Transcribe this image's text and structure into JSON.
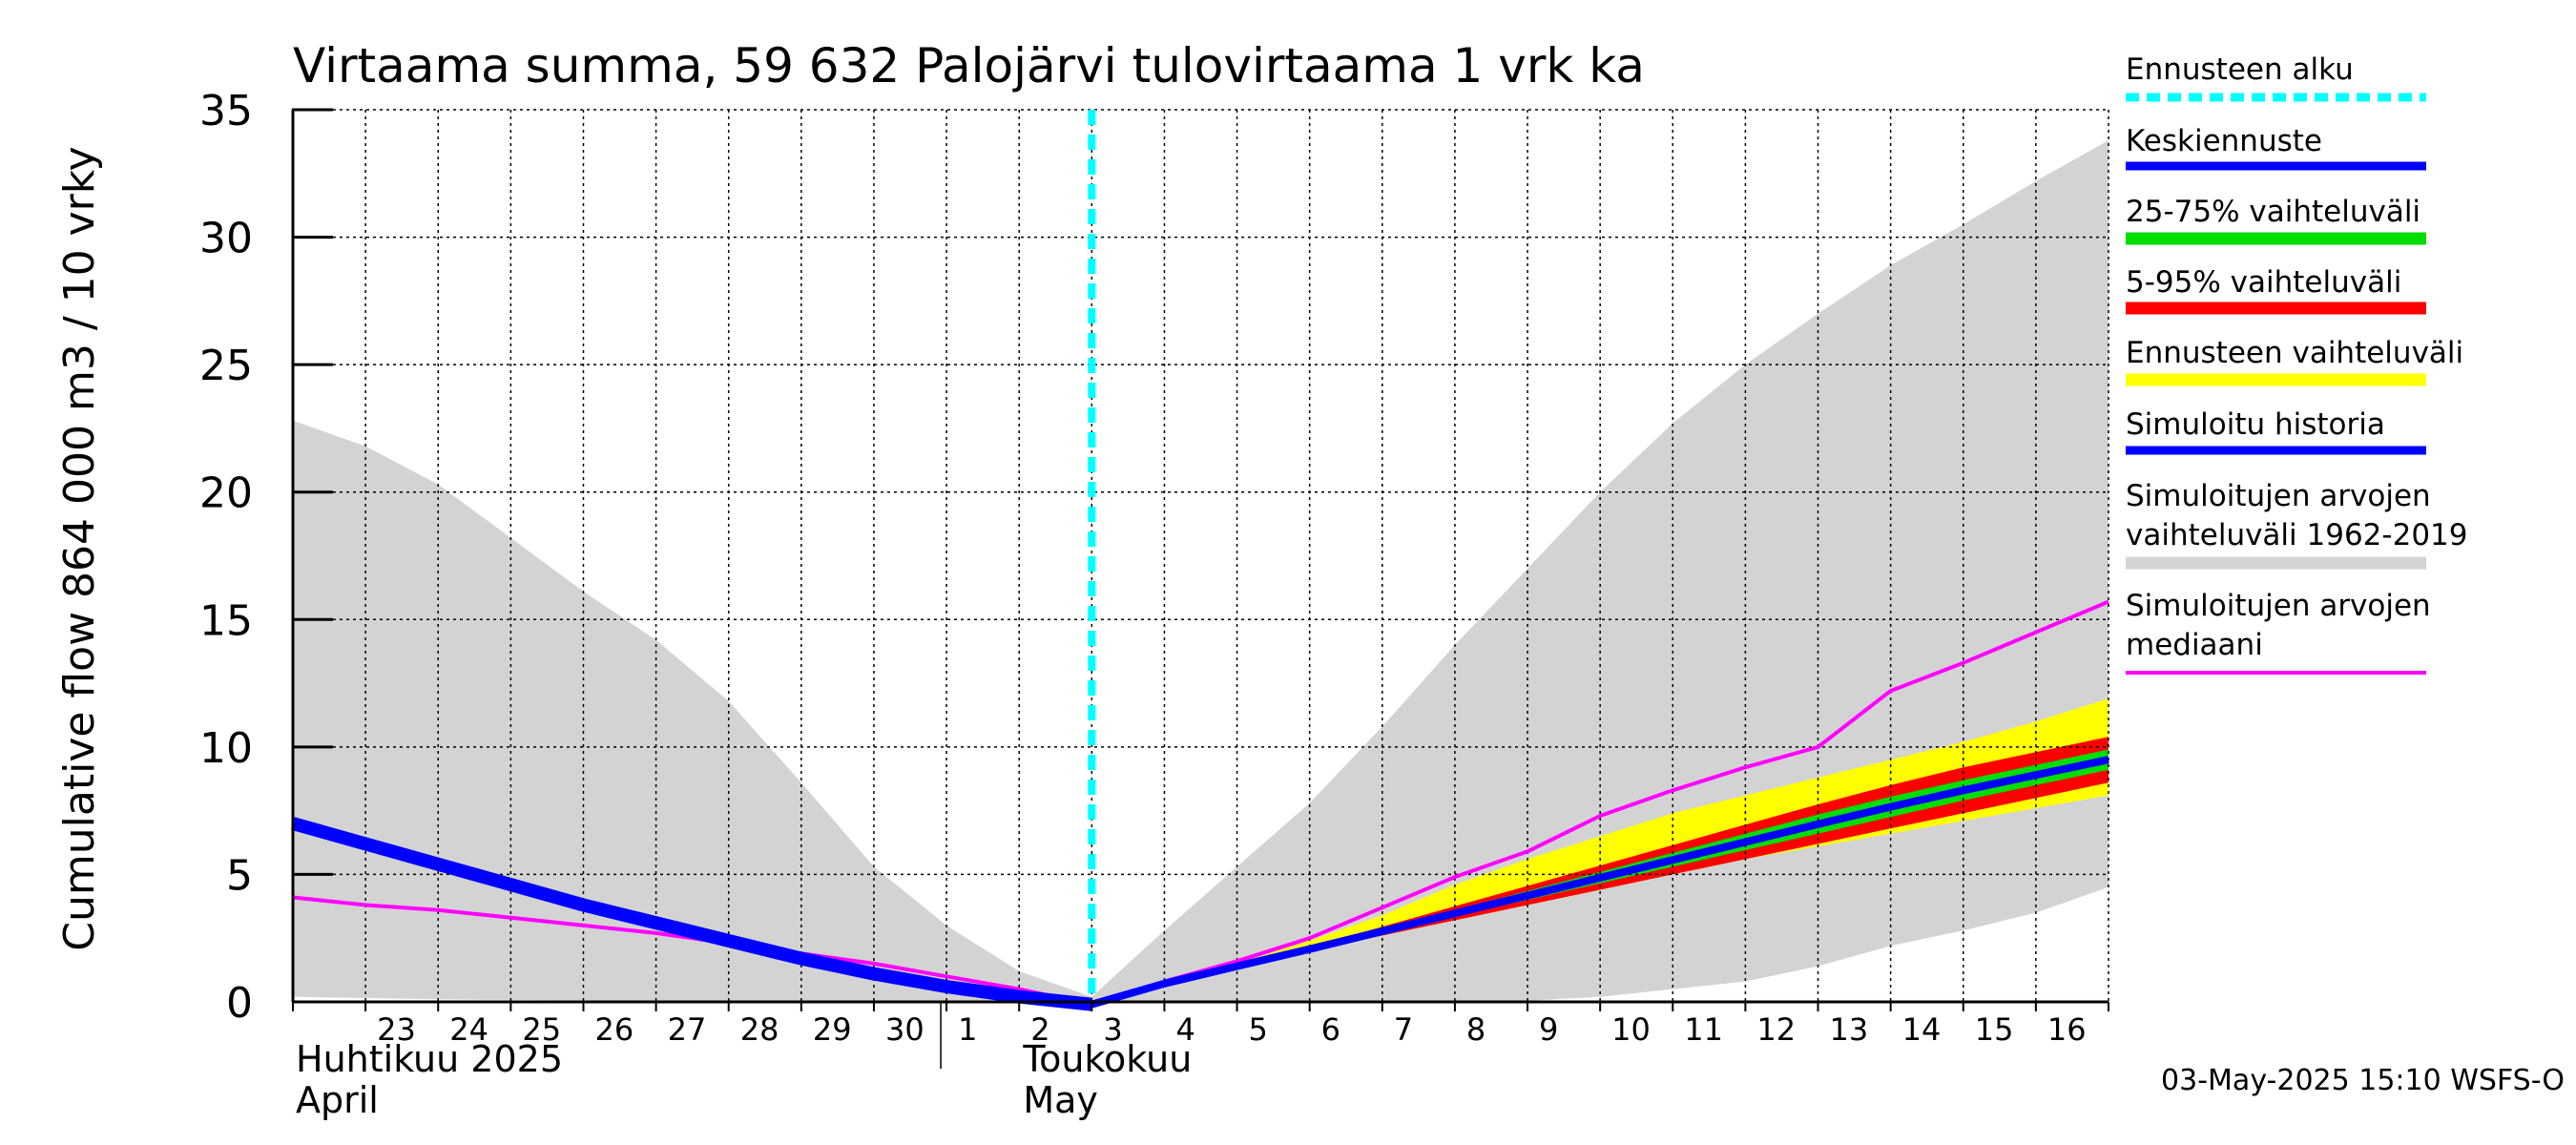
{
  "chart_data": {
    "type": "area",
    "title": "Virtaama summa, 59 632 Palojärvi tulovirtaama 1 vrk ka",
    "ylabel": "Cumulative flow    864 000 m3 / 10 vrky",
    "ylim": [
      0,
      35
    ],
    "yticks": [
      0,
      5,
      10,
      15,
      20,
      25,
      30,
      35
    ],
    "x_dates": [
      "2025-04-22",
      "2025-04-23",
      "2025-04-24",
      "2025-04-25",
      "2025-04-26",
      "2025-04-27",
      "2025-04-28",
      "2025-04-29",
      "2025-04-30",
      "2025-05-01",
      "2025-05-02",
      "2025-05-03",
      "2025-05-04",
      "2025-05-05",
      "2025-05-06",
      "2025-05-07",
      "2025-05-08",
      "2025-05-09",
      "2025-05-10",
      "2025-05-11",
      "2025-05-12",
      "2025-05-13",
      "2025-05-14",
      "2025-05-15",
      "2025-05-16",
      "2025-05-17"
    ],
    "xtick_labels": [
      "23",
      "24",
      "25",
      "26",
      "27",
      "28",
      "29",
      "30",
      "1",
      "2",
      "3",
      "4",
      "5",
      "6",
      "7",
      "8",
      "9",
      "10",
      "11",
      "12",
      "13",
      "14",
      "15",
      "16"
    ],
    "xtick_dates": [
      "2025-04-23",
      "2025-04-24",
      "2025-04-25",
      "2025-04-26",
      "2025-04-27",
      "2025-04-28",
      "2025-04-29",
      "2025-04-30",
      "2025-05-01",
      "2025-05-02",
      "2025-05-03",
      "2025-05-04",
      "2025-05-05",
      "2025-05-06",
      "2025-05-07",
      "2025-05-08",
      "2025-05-09",
      "2025-05-10",
      "2025-05-11",
      "2025-05-12",
      "2025-05-13",
      "2025-05-14",
      "2025-05-15",
      "2025-05-16"
    ],
    "month_labels": [
      {
        "line1": "Huhtikuu  2025",
        "line2": "April",
        "date": "2025-04-22"
      },
      {
        "line1": "Toukokuu",
        "line2": "May",
        "date": "2025-05-01"
      }
    ],
    "forecast_start": "2025-05-03",
    "series": [
      {
        "name": "Simuloitujen arvojen vaihteluväli 1962-2019",
        "kind": "band",
        "color": "#d3d3d3",
        "x": [
          "2025-04-22",
          "2025-04-23",
          "2025-04-24",
          "2025-04-25",
          "2025-04-26",
          "2025-04-27",
          "2025-04-28",
          "2025-04-29",
          "2025-04-30",
          "2025-05-01",
          "2025-05-02",
          "2025-05-03",
          "2025-05-04",
          "2025-05-05",
          "2025-05-06",
          "2025-05-07",
          "2025-05-08",
          "2025-05-09",
          "2025-05-10",
          "2025-05-11",
          "2025-05-12",
          "2025-05-13",
          "2025-05-14",
          "2025-05-15",
          "2025-05-16",
          "2025-05-17"
        ],
        "upper": [
          22.8,
          21.8,
          20.3,
          18.2,
          16.1,
          14.2,
          11.8,
          8.6,
          5.3,
          3.0,
          1.2,
          0.2,
          2.8,
          5.3,
          7.8,
          10.8,
          14.0,
          17.0,
          20.0,
          22.7,
          25.0,
          27.0,
          28.9,
          30.5,
          32.2,
          33.8
        ],
        "lower": [
          0.2,
          0.15,
          0.1,
          0.08,
          0.06,
          0.05,
          0.04,
          0.03,
          0.02,
          0.01,
          0.0,
          0.0,
          0.0,
          0.0,
          0.0,
          0.0,
          0.0,
          0.05,
          0.2,
          0.5,
          0.8,
          1.4,
          2.2,
          2.8,
          3.5,
          4.5
        ]
      },
      {
        "name": "Ennusteen vaihteluväli",
        "kind": "band",
        "color": "#ffff00",
        "x": [
          "2025-05-03",
          "2025-05-04",
          "2025-05-05",
          "2025-05-06",
          "2025-05-07",
          "2025-05-08",
          "2025-05-09",
          "2025-05-10",
          "2025-05-11",
          "2025-05-12",
          "2025-05-13",
          "2025-05-14",
          "2025-05-15",
          "2025-05-16",
          "2025-05-17"
        ],
        "upper": [
          0.0,
          0.8,
          1.5,
          2.4,
          3.4,
          4.6,
          5.6,
          6.5,
          7.4,
          8.1,
          8.8,
          9.5,
          10.2,
          11.0,
          11.9
        ],
        "lower": [
          0.0,
          0.7,
          1.3,
          2.0,
          2.6,
          3.2,
          3.8,
          4.4,
          5.0,
          5.6,
          6.1,
          6.6,
          7.1,
          7.6,
          8.1
        ]
      },
      {
        "name": "5-95% vaihteluväli",
        "kind": "band",
        "color": "#ff0000",
        "x": [
          "2025-05-03",
          "2025-05-04",
          "2025-05-05",
          "2025-05-06",
          "2025-05-07",
          "2025-05-08",
          "2025-05-09",
          "2025-05-10",
          "2025-05-11",
          "2025-05-12",
          "2025-05-13",
          "2025-05-14",
          "2025-05-15",
          "2025-05-16",
          "2025-05-17"
        ],
        "upper": [
          0.0,
          0.75,
          1.45,
          2.15,
          2.95,
          3.75,
          4.55,
          5.35,
          6.15,
          6.95,
          7.75,
          8.5,
          9.2,
          9.8,
          10.4
        ],
        "lower": [
          0.0,
          0.7,
          1.35,
          2.0,
          2.6,
          3.2,
          3.8,
          4.4,
          5.0,
          5.6,
          6.2,
          6.8,
          7.4,
          8.0,
          8.6
        ]
      },
      {
        "name": "25-75% vaihteluväli",
        "kind": "band",
        "color": "#00dd00",
        "x": [
          "2025-05-03",
          "2025-05-04",
          "2025-05-05",
          "2025-05-06",
          "2025-05-07",
          "2025-05-08",
          "2025-05-09",
          "2025-05-10",
          "2025-05-11",
          "2025-05-12",
          "2025-05-13",
          "2025-05-14",
          "2025-05-15",
          "2025-05-16",
          "2025-05-17"
        ],
        "upper": [
          0.0,
          0.73,
          1.42,
          2.1,
          2.85,
          3.6,
          4.35,
          5.1,
          5.85,
          6.6,
          7.35,
          8.05,
          8.7,
          9.3,
          9.9
        ],
        "lower": [
          0.0,
          0.71,
          1.38,
          2.05,
          2.7,
          3.35,
          4.0,
          4.65,
          5.3,
          5.95,
          6.6,
          7.25,
          7.9,
          8.5,
          9.1
        ]
      },
      {
        "name": "Simuloitujen arvojen mediaani",
        "kind": "line",
        "color": "#ff00ff",
        "width": 4,
        "x": [
          "2025-04-22",
          "2025-04-23",
          "2025-04-24",
          "2025-04-25",
          "2025-04-26",
          "2025-04-27",
          "2025-04-28",
          "2025-04-29",
          "2025-04-30",
          "2025-05-01",
          "2025-05-02",
          "2025-05-03",
          "2025-05-04",
          "2025-05-05",
          "2025-05-06",
          "2025-05-07",
          "2025-05-08",
          "2025-05-09",
          "2025-05-10",
          "2025-05-11",
          "2025-05-12",
          "2025-05-13",
          "2025-05-14",
          "2025-05-15",
          "2025-05-16",
          "2025-05-17"
        ],
        "y": [
          4.1,
          3.8,
          3.6,
          3.3,
          3.0,
          2.7,
          2.3,
          1.9,
          1.5,
          1.0,
          0.5,
          -0.1,
          0.8,
          1.6,
          2.5,
          3.7,
          4.9,
          5.9,
          7.3,
          8.3,
          9.2,
          10.0,
          12.2,
          13.3,
          14.5,
          15.7
        ]
      },
      {
        "name": "Simuloitu historia",
        "kind": "line",
        "color": "#0000ff",
        "width": 14,
        "x": [
          "2025-04-22",
          "2025-04-23",
          "2025-04-24",
          "2025-04-25",
          "2025-04-26",
          "2025-04-27",
          "2025-04-28",
          "2025-04-29",
          "2025-04-30",
          "2025-05-01",
          "2025-05-02",
          "2025-05-03"
        ],
        "y": [
          7.0,
          6.2,
          5.4,
          4.6,
          3.8,
          3.1,
          2.4,
          1.7,
          1.1,
          0.6,
          0.2,
          -0.1
        ]
      },
      {
        "name": "Keskiennuste",
        "kind": "line",
        "color": "#0000ff",
        "width": 8,
        "x": [
          "2025-05-03",
          "2025-05-04",
          "2025-05-05",
          "2025-05-06",
          "2025-05-07",
          "2025-05-08",
          "2025-05-09",
          "2025-05-10",
          "2025-05-11",
          "2025-05-12",
          "2025-05-13",
          "2025-05-14",
          "2025-05-15",
          "2025-05-16",
          "2025-05-17"
        ],
        "y": [
          -0.1,
          0.72,
          1.4,
          2.07,
          2.77,
          3.47,
          4.17,
          4.87,
          5.57,
          6.27,
          6.97,
          7.65,
          8.3,
          8.9,
          9.5
        ]
      }
    ],
    "legend": {
      "placement": "right",
      "entries": [
        {
          "label": "Ennusteen alku",
          "color": "#00ffff",
          "style": "dashed"
        },
        {
          "label": "Keskiennuste",
          "color": "#0000ff",
          "style": "solid"
        },
        {
          "label": "25-75% vaihteluväli",
          "color": "#00dd00",
          "style": "solid"
        },
        {
          "label": "5-95% vaihteluväli",
          "color": "#ff0000",
          "style": "solid"
        },
        {
          "label": "Ennusteen vaihteluväli",
          "color": "#ffff00",
          "style": "solid"
        },
        {
          "label": "Simuloitu historia",
          "color": "#0000ff",
          "style": "solid"
        },
        {
          "label": "Simuloitujen arvojen\nvaihteluväli 1962-2019",
          "color": "#d3d3d3",
          "style": "solid"
        },
        {
          "label": "Simuloitujen arvojen\nmediaani",
          "color": "#ff00ff",
          "style": "thin"
        }
      ]
    },
    "grid": true
  },
  "footer": "03-May-2025 15:10 WSFS-O"
}
